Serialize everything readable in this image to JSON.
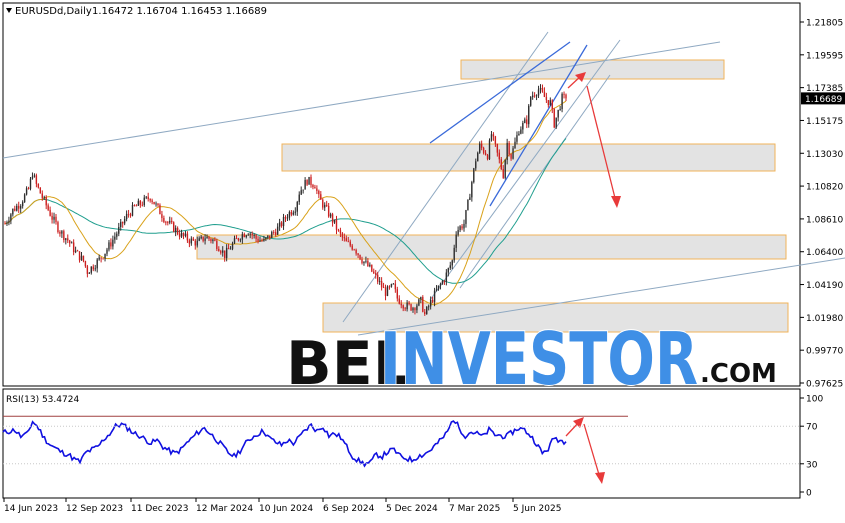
{
  "header": {
    "symbol_text": "EURUSDd,Daily",
    "ohlc_text": "1.16472 1.16704 1.16453 1.16689"
  },
  "rsi": {
    "label": "RSI(13) 53.4724",
    "levels": [
      100,
      70,
      30,
      0
    ],
    "overbought": 70,
    "oversold": 30
  },
  "watermark": {
    "part1": "BEL",
    "part2": "INVESTOR",
    "part3": ".COM"
  },
  "colors": {
    "bull": "#2e2e2e",
    "bear": "#cc1f1f",
    "ma_fast": "#d9a21b",
    "ma_slow": "#1f9e8e",
    "zone_fill": "#e3e3e3",
    "zone_border": "#f0b35a",
    "trend_line": "#8fa9c2",
    "channel_line": "#3a6ad9",
    "arrow": "#e83a3a",
    "rsi_line": "#1010e0",
    "rsi_level": "#a04040",
    "watermark_dark": "#111111",
    "watermark_blue": "#3f8fe6",
    "price_label_bg": "#000000"
  },
  "chart_data": {
    "type": "candlestick",
    "y_ticks": [
      "1.21805",
      "1.19595",
      "1.17385",
      "1.15175",
      "1.13030",
      "1.10820",
      "1.08610",
      "1.06400",
      "1.04190",
      "1.01980",
      "0.99770",
      "0.97625"
    ],
    "current_price_label": "1.16689",
    "current_price": 1.16689,
    "ylim": [
      0.97625,
      1.21805
    ],
    "x_labels": [
      "14 Jun 2023",
      "12 Sep 2023",
      "11 Dec 2023",
      "12 Mar 2024",
      "10 Jun 2024",
      "6 Sep 2024",
      "5 Dec 2024",
      "7 Mar 2025",
      "5 Jun 2025"
    ],
    "close_path": [
      [
        0,
        1.083
      ],
      [
        4,
        1.092
      ],
      [
        8,
        1.097
      ],
      [
        12,
        1.106
      ],
      [
        14,
        1.117
      ],
      [
        16,
        1.109
      ],
      [
        20,
        1.098
      ],
      [
        24,
        1.087
      ],
      [
        28,
        1.078
      ],
      [
        32,
        1.072
      ],
      [
        36,
        1.064
      ],
      [
        40,
        1.058
      ],
      [
        42,
        1.051
      ],
      [
        46,
        1.056
      ],
      [
        50,
        1.062
      ],
      [
        54,
        1.07
      ],
      [
        58,
        1.079
      ],
      [
        62,
        1.088
      ],
      [
        66,
        1.094
      ],
      [
        70,
        1.097
      ],
      [
        74,
        1.101
      ],
      [
        78,
        1.093
      ],
      [
        82,
        1.085
      ],
      [
        86,
        1.08
      ],
      [
        90,
        1.075
      ],
      [
        94,
        1.072
      ],
      [
        98,
        1.07
      ],
      [
        102,
        1.074
      ],
      [
        106,
        1.072
      ],
      [
        110,
        1.066
      ],
      [
        112,
        1.062
      ],
      [
        116,
        1.069
      ],
      [
        120,
        1.075
      ],
      [
        124,
        1.078
      ],
      [
        128,
        1.073
      ],
      [
        132,
        1.071
      ],
      [
        136,
        1.076
      ],
      [
        140,
        1.081
      ],
      [
        144,
        1.089
      ],
      [
        148,
        1.094
      ],
      [
        150,
        1.104
      ],
      [
        154,
        1.112
      ],
      [
        158,
        1.109
      ],
      [
        160,
        1.1
      ],
      [
        164,
        1.092
      ],
      [
        168,
        1.083
      ],
      [
        170,
        1.077
      ],
      [
        174,
        1.07
      ],
      [
        178,
        1.067
      ],
      [
        182,
        1.059
      ],
      [
        186,
        1.053
      ],
      [
        190,
        1.045
      ],
      [
        194,
        1.037
      ],
      [
        198,
        1.041
      ],
      [
        200,
        1.033
      ],
      [
        204,
        1.028
      ],
      [
        208,
        1.027
      ],
      [
        212,
        1.031
      ],
      [
        214,
        1.022
      ],
      [
        218,
        1.033
      ],
      [
        220,
        1.038
      ],
      [
        224,
        1.046
      ],
      [
        228,
        1.058
      ],
      [
        230,
        1.078
      ],
      [
        234,
        1.083
      ],
      [
        236,
        1.096
      ],
      [
        240,
        1.126
      ],
      [
        242,
        1.135
      ],
      [
        246,
        1.129
      ],
      [
        248,
        1.143
      ],
      [
        250,
        1.134
      ],
      [
        254,
        1.116
      ],
      [
        256,
        1.137
      ],
      [
        258,
        1.128
      ],
      [
        262,
        1.146
      ],
      [
        266,
        1.152
      ],
      [
        268,
        1.168
      ],
      [
        272,
        1.173
      ],
      [
        276,
        1.166
      ],
      [
        278,
        1.164
      ],
      [
        280,
        1.15
      ],
      [
        282,
        1.158
      ],
      [
        284,
        1.167
      ],
      [
        286,
        1.16689
      ]
    ],
    "rsi_path": [
      [
        0,
        63
      ],
      [
        4,
        66
      ],
      [
        6,
        59
      ],
      [
        8,
        61
      ],
      [
        10,
        75
      ],
      [
        12,
        68
      ],
      [
        14,
        57
      ],
      [
        16,
        50
      ],
      [
        18,
        46
      ],
      [
        20,
        42
      ],
      [
        22,
        40
      ],
      [
        24,
        35
      ],
      [
        26,
        32
      ],
      [
        28,
        42
      ],
      [
        30,
        45
      ],
      [
        32,
        48
      ],
      [
        34,
        56
      ],
      [
        36,
        62
      ],
      [
        38,
        70
      ],
      [
        40,
        72
      ],
      [
        42,
        68
      ],
      [
        44,
        63
      ],
      [
        46,
        60
      ],
      [
        48,
        56
      ],
      [
        50,
        52
      ],
      [
        52,
        55
      ],
      [
        54,
        48
      ],
      [
        56,
        44
      ],
      [
        58,
        41
      ],
      [
        60,
        45
      ],
      [
        62,
        52
      ],
      [
        64,
        58
      ],
      [
        66,
        64
      ],
      [
        68,
        68
      ],
      [
        70,
        62
      ],
      [
        72,
        56
      ],
      [
        74,
        49
      ],
      [
        76,
        42
      ],
      [
        78,
        38
      ],
      [
        80,
        44
      ],
      [
        82,
        52
      ],
      [
        84,
        58
      ],
      [
        86,
        62
      ],
      [
        88,
        65
      ],
      [
        90,
        57
      ],
      [
        92,
        53
      ],
      [
        94,
        50
      ],
      [
        96,
        55
      ],
      [
        98,
        52
      ],
      [
        100,
        58
      ],
      [
        102,
        66
      ],
      [
        104,
        71
      ],
      [
        106,
        65
      ],
      [
        108,
        70
      ],
      [
        110,
        60
      ],
      [
        112,
        62
      ],
      [
        114,
        58
      ],
      [
        116,
        48
      ],
      [
        118,
        38
      ],
      [
        120,
        33
      ],
      [
        122,
        30
      ],
      [
        124,
        31
      ],
      [
        126,
        40
      ],
      [
        128,
        38
      ],
      [
        130,
        43
      ],
      [
        132,
        45
      ],
      [
        134,
        38
      ],
      [
        136,
        36
      ],
      [
        138,
        34
      ],
      [
        140,
        38
      ],
      [
        142,
        40
      ],
      [
        144,
        44
      ],
      [
        146,
        50
      ],
      [
        148,
        56
      ],
      [
        150,
        64
      ],
      [
        152,
        78
      ],
      [
        154,
        68
      ],
      [
        156,
        60
      ],
      [
        158,
        64
      ],
      [
        160,
        62
      ],
      [
        162,
        59
      ],
      [
        164,
        66
      ],
      [
        166,
        61
      ],
      [
        168,
        60
      ],
      [
        170,
        59
      ],
      [
        172,
        64
      ],
      [
        174,
        68
      ],
      [
        176,
        66
      ],
      [
        178,
        60
      ],
      [
        180,
        52
      ],
      [
        182,
        41
      ],
      [
        184,
        46
      ],
      [
        186,
        58
      ],
      [
        188,
        55
      ],
      [
        190,
        53.4724
      ]
    ]
  }
}
